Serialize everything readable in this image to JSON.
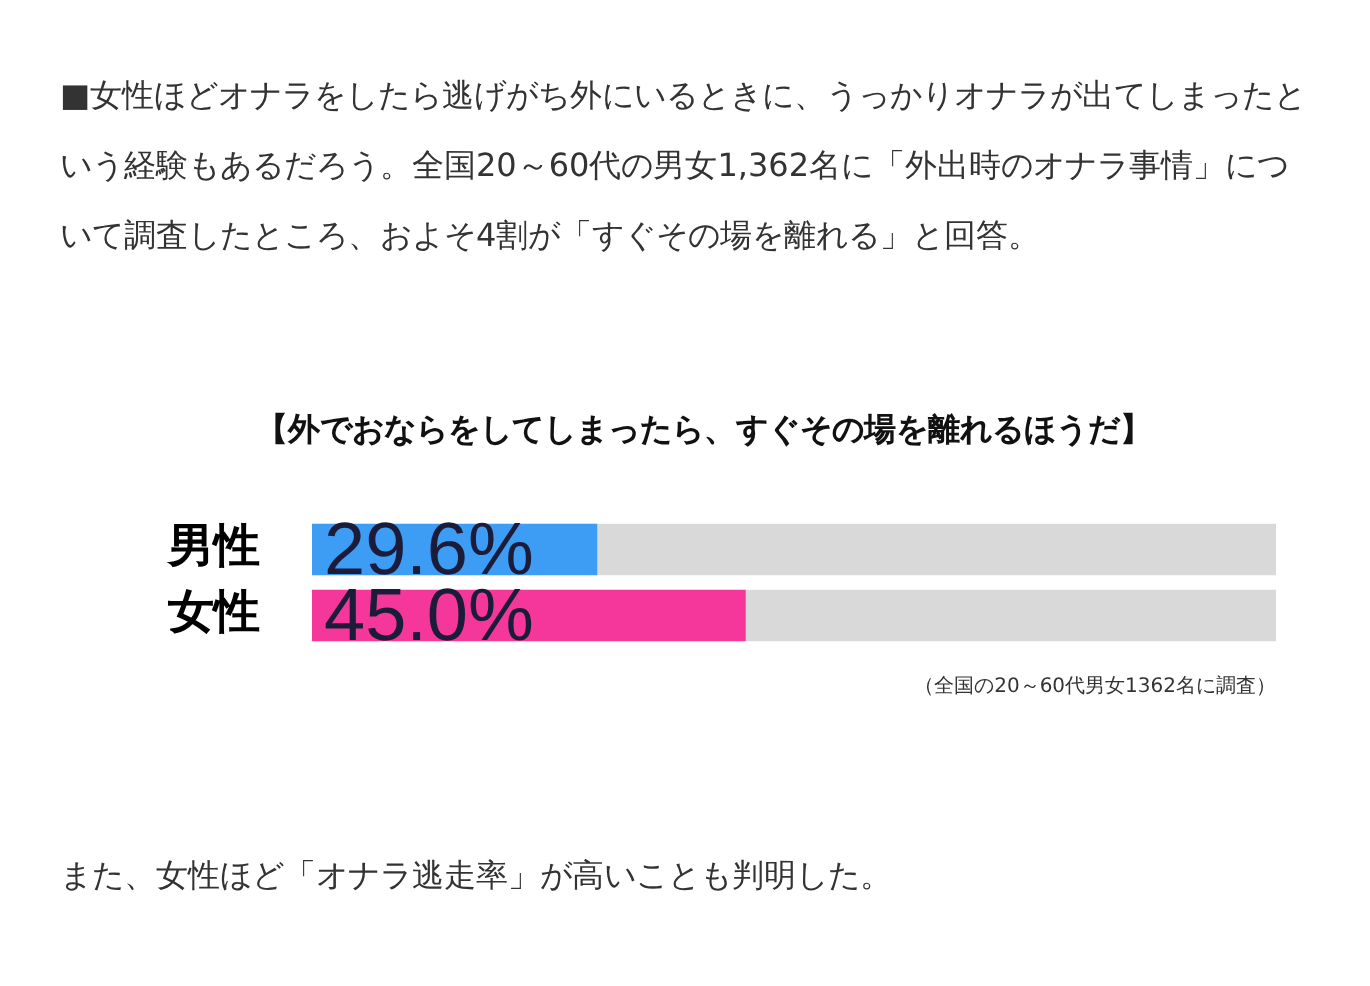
{
  "chart_data": {
    "type": "bar",
    "orientation": "horizontal",
    "stacked": true,
    "title": "【外でおならをしてしまったら、すぐその場を離れるほうだ】",
    "categories": [
      "男性",
      "女性"
    ],
    "series": [
      {
        "colors": [
          "#3d9cf4",
          "#f5379b"
        ],
        "values": [
          29.6,
          45.0
        ],
        "value_labels": [
          "29.6%",
          "45.0%"
        ]
      },
      {
        "color": "#d9d9d9",
        "values": [
          70.4,
          55.0
        ]
      }
    ],
    "xlim": [
      0,
      100
    ],
    "tick_labels": "y",
    "grid": false,
    "legend": false,
    "annotations": [
      "■女性ほどオナラをしたら逃げがち外にいるときに、うっかりオナラが出てしまったという経験もあるだろう。全国20～60代の男女1,362名に「外出時のオナラ事情」について調査したところ、およそ4割が「すぐその場を離れる」と回答。",
      "（全国の20～60代男女1362名に調査）",
      "また、女性ほど「オナラ逃走率」が高いことも判明した。"
    ]
  }
}
